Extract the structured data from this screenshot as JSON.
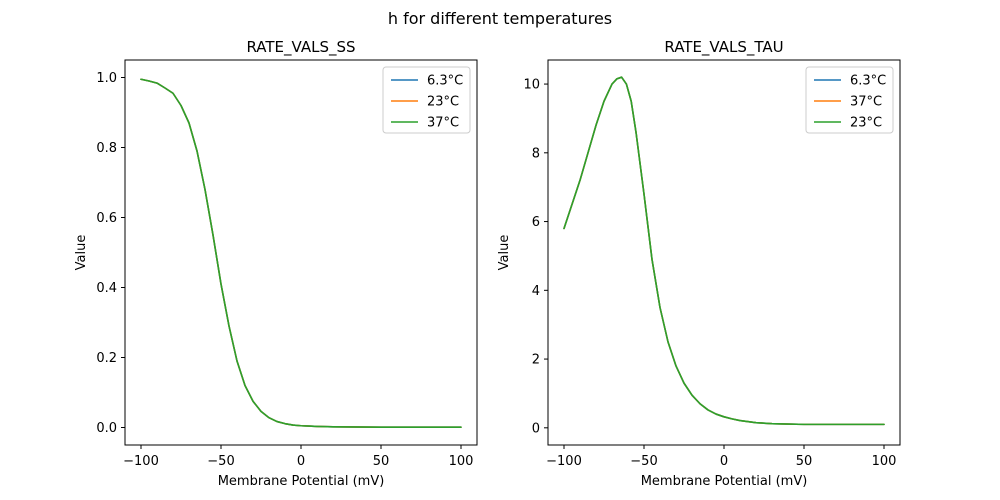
{
  "figure": {
    "suptitle": "h for different temperatures"
  },
  "chart_data": [
    {
      "type": "line",
      "title": "RATE_VALS_SS",
      "xlabel": "Membrane Potential (mV)",
      "ylabel": "Value",
      "xlim": [
        -110,
        110
      ],
      "ylim": [
        -0.05,
        1.05
      ],
      "xticks": [
        -100,
        -50,
        0,
        50,
        100
      ],
      "xtick_labels": [
        "−100",
        "−50",
        "0",
        "50",
        "100"
      ],
      "yticks": [
        0.0,
        0.2,
        0.4,
        0.6,
        0.8,
        1.0
      ],
      "ytick_labels": [
        "0.0",
        "0.2",
        "0.4",
        "0.6",
        "0.8",
        "1.0"
      ],
      "grid": false,
      "legend_position": "top-right",
      "x": [
        -100,
        -95,
        -90,
        -85,
        -80,
        -75,
        -70,
        -65,
        -60,
        -55,
        -50,
        -45,
        -40,
        -35,
        -30,
        -25,
        -20,
        -15,
        -10,
        -5,
        0,
        5,
        10,
        20,
        30,
        40,
        50,
        60,
        70,
        80,
        90,
        100
      ],
      "series": [
        {
          "name": "6.3°C",
          "color": "#1f77b4",
          "values": [
            0.995,
            0.99,
            0.984,
            0.97,
            0.955,
            0.92,
            0.87,
            0.79,
            0.68,
            0.55,
            0.41,
            0.29,
            0.19,
            0.12,
            0.075,
            0.046,
            0.028,
            0.017,
            0.011,
            0.007,
            0.005,
            0.004,
            0.003,
            0.002,
            0.0015,
            0.0012,
            0.001,
            0.001,
            0.001,
            0.001,
            0.001,
            0.001
          ]
        },
        {
          "name": "23°C",
          "color": "#ff7f0e",
          "values": [
            0.995,
            0.99,
            0.984,
            0.97,
            0.955,
            0.92,
            0.87,
            0.79,
            0.68,
            0.55,
            0.41,
            0.29,
            0.19,
            0.12,
            0.075,
            0.046,
            0.028,
            0.017,
            0.011,
            0.007,
            0.005,
            0.004,
            0.003,
            0.002,
            0.0015,
            0.0012,
            0.001,
            0.001,
            0.001,
            0.001,
            0.001,
            0.001
          ]
        },
        {
          "name": "37°C",
          "color": "#2ca02c",
          "values": [
            0.995,
            0.99,
            0.984,
            0.97,
            0.955,
            0.92,
            0.87,
            0.79,
            0.68,
            0.55,
            0.41,
            0.29,
            0.19,
            0.12,
            0.075,
            0.046,
            0.028,
            0.017,
            0.011,
            0.007,
            0.005,
            0.004,
            0.003,
            0.002,
            0.0015,
            0.0012,
            0.001,
            0.001,
            0.001,
            0.001,
            0.001,
            0.001
          ]
        }
      ]
    },
    {
      "type": "line",
      "title": "RATE_VALS_TAU",
      "xlabel": "Membrane Potential (mV)",
      "ylabel": "Value",
      "xlim": [
        -110,
        110
      ],
      "ylim": [
        -0.5,
        10.7
      ],
      "xticks": [
        -100,
        -50,
        0,
        50,
        100
      ],
      "xtick_labels": [
        "−100",
        "−50",
        "0",
        "50",
        "100"
      ],
      "yticks": [
        0,
        2,
        4,
        6,
        8,
        10
      ],
      "ytick_labels": [
        "0",
        "2",
        "4",
        "6",
        "8",
        "10"
      ],
      "grid": false,
      "legend_position": "top-right",
      "x": [
        -100,
        -95,
        -90,
        -85,
        -80,
        -75,
        -70,
        -67,
        -64,
        -61,
        -58,
        -55,
        -50,
        -45,
        -40,
        -35,
        -30,
        -25,
        -20,
        -15,
        -10,
        -5,
        0,
        5,
        10,
        20,
        30,
        40,
        50,
        60,
        70,
        80,
        90,
        100
      ],
      "series": [
        {
          "name": "6.3°C",
          "color": "#1f77b4",
          "values": [
            5.8,
            6.5,
            7.2,
            8.0,
            8.8,
            9.5,
            10.0,
            10.15,
            10.2,
            10.0,
            9.5,
            8.6,
            6.8,
            4.9,
            3.5,
            2.5,
            1.8,
            1.3,
            0.95,
            0.7,
            0.52,
            0.4,
            0.32,
            0.26,
            0.21,
            0.15,
            0.12,
            0.11,
            0.1,
            0.1,
            0.1,
            0.1,
            0.1,
            0.1
          ]
        },
        {
          "name": "37°C",
          "color": "#ff7f0e",
          "values": [
            5.8,
            6.5,
            7.2,
            8.0,
            8.8,
            9.5,
            10.0,
            10.15,
            10.2,
            10.0,
            9.5,
            8.6,
            6.8,
            4.9,
            3.5,
            2.5,
            1.8,
            1.3,
            0.95,
            0.7,
            0.52,
            0.4,
            0.32,
            0.26,
            0.21,
            0.15,
            0.12,
            0.11,
            0.1,
            0.1,
            0.1,
            0.1,
            0.1,
            0.1
          ]
        },
        {
          "name": "23°C",
          "color": "#2ca02c",
          "values": [
            5.8,
            6.5,
            7.2,
            8.0,
            8.8,
            9.5,
            10.0,
            10.15,
            10.2,
            10.0,
            9.5,
            8.6,
            6.8,
            4.9,
            3.5,
            2.5,
            1.8,
            1.3,
            0.95,
            0.7,
            0.52,
            0.4,
            0.32,
            0.26,
            0.21,
            0.15,
            0.12,
            0.11,
            0.1,
            0.1,
            0.1,
            0.1,
            0.1,
            0.1
          ]
        }
      ]
    }
  ]
}
